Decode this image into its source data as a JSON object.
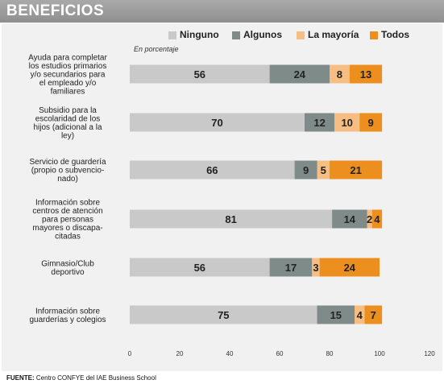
{
  "header": {
    "title": "BENEFICIOS"
  },
  "unit_note": "En porcentaje",
  "source": {
    "label": "FUENTE:",
    "text": "Centro CONFYE del IAE Business School"
  },
  "colors": {
    "header_bg": "#9c9c9c",
    "panel_bg": "#f1f1f1",
    "ninguno": "#c9c9c9",
    "algunos": "#7f8b89",
    "la_mayoria": "#f6be83",
    "todos": "#ec8f1f"
  },
  "chart_data": {
    "type": "bar",
    "orientation": "horizontal",
    "stacked": true,
    "title": "BENEFICIOS",
    "subtitle": "En porcentaje",
    "categories": [
      "Ayuda para completar los estudios primarios y/o secundarios para el empleado y/o familiares",
      "Subsidio para la escolaridad de los hijos (adicional a la ley)",
      "Servicio de guardería (propio o subvencio- nado)",
      "Información sobre centros de atención para personas mayores o discapa- citadas",
      "Gimnasio/Club deportivo",
      "Información sobre guarderías y colegios"
    ],
    "category_lines": [
      [
        "Ayuda para completar",
        "los estudios primarios",
        "y/o secundarios para",
        "el empleado y/o",
        "familiares"
      ],
      [
        "Subsidio para la",
        "escolaridad de los",
        "hijos (adicional a la",
        "ley)"
      ],
      [
        "Servicio de guardería",
        "(propio o subvencio-",
        "nado)"
      ],
      [
        "Información sobre",
        "centros de atención",
        "para personas",
        "mayores o discapa-",
        "citadas"
      ],
      [
        "Gimnasio/Club",
        "deportivo"
      ],
      [
        "Información sobre",
        "guarderías y colegios"
      ]
    ],
    "series": [
      {
        "name": "Ninguno",
        "color": "#c9c9c9",
        "values": [
          56,
          70,
          66,
          81,
          56,
          75
        ]
      },
      {
        "name": "Algunos",
        "color": "#7f8b89",
        "values": [
          24,
          12,
          9,
          14,
          17,
          15
        ]
      },
      {
        "name": "La mayoría",
        "color": "#f6be83",
        "values": [
          8,
          10,
          5,
          2,
          3,
          4
        ]
      },
      {
        "name": "Todos",
        "color": "#ec8f1f",
        "values": [
          13,
          9,
          21,
          4,
          24,
          7
        ]
      }
    ],
    "xlim": [
      0,
      120
    ],
    "xticks": [
      0,
      20,
      40,
      60,
      80,
      100,
      120
    ],
    "grid": false,
    "legend_position": "top-right"
  }
}
